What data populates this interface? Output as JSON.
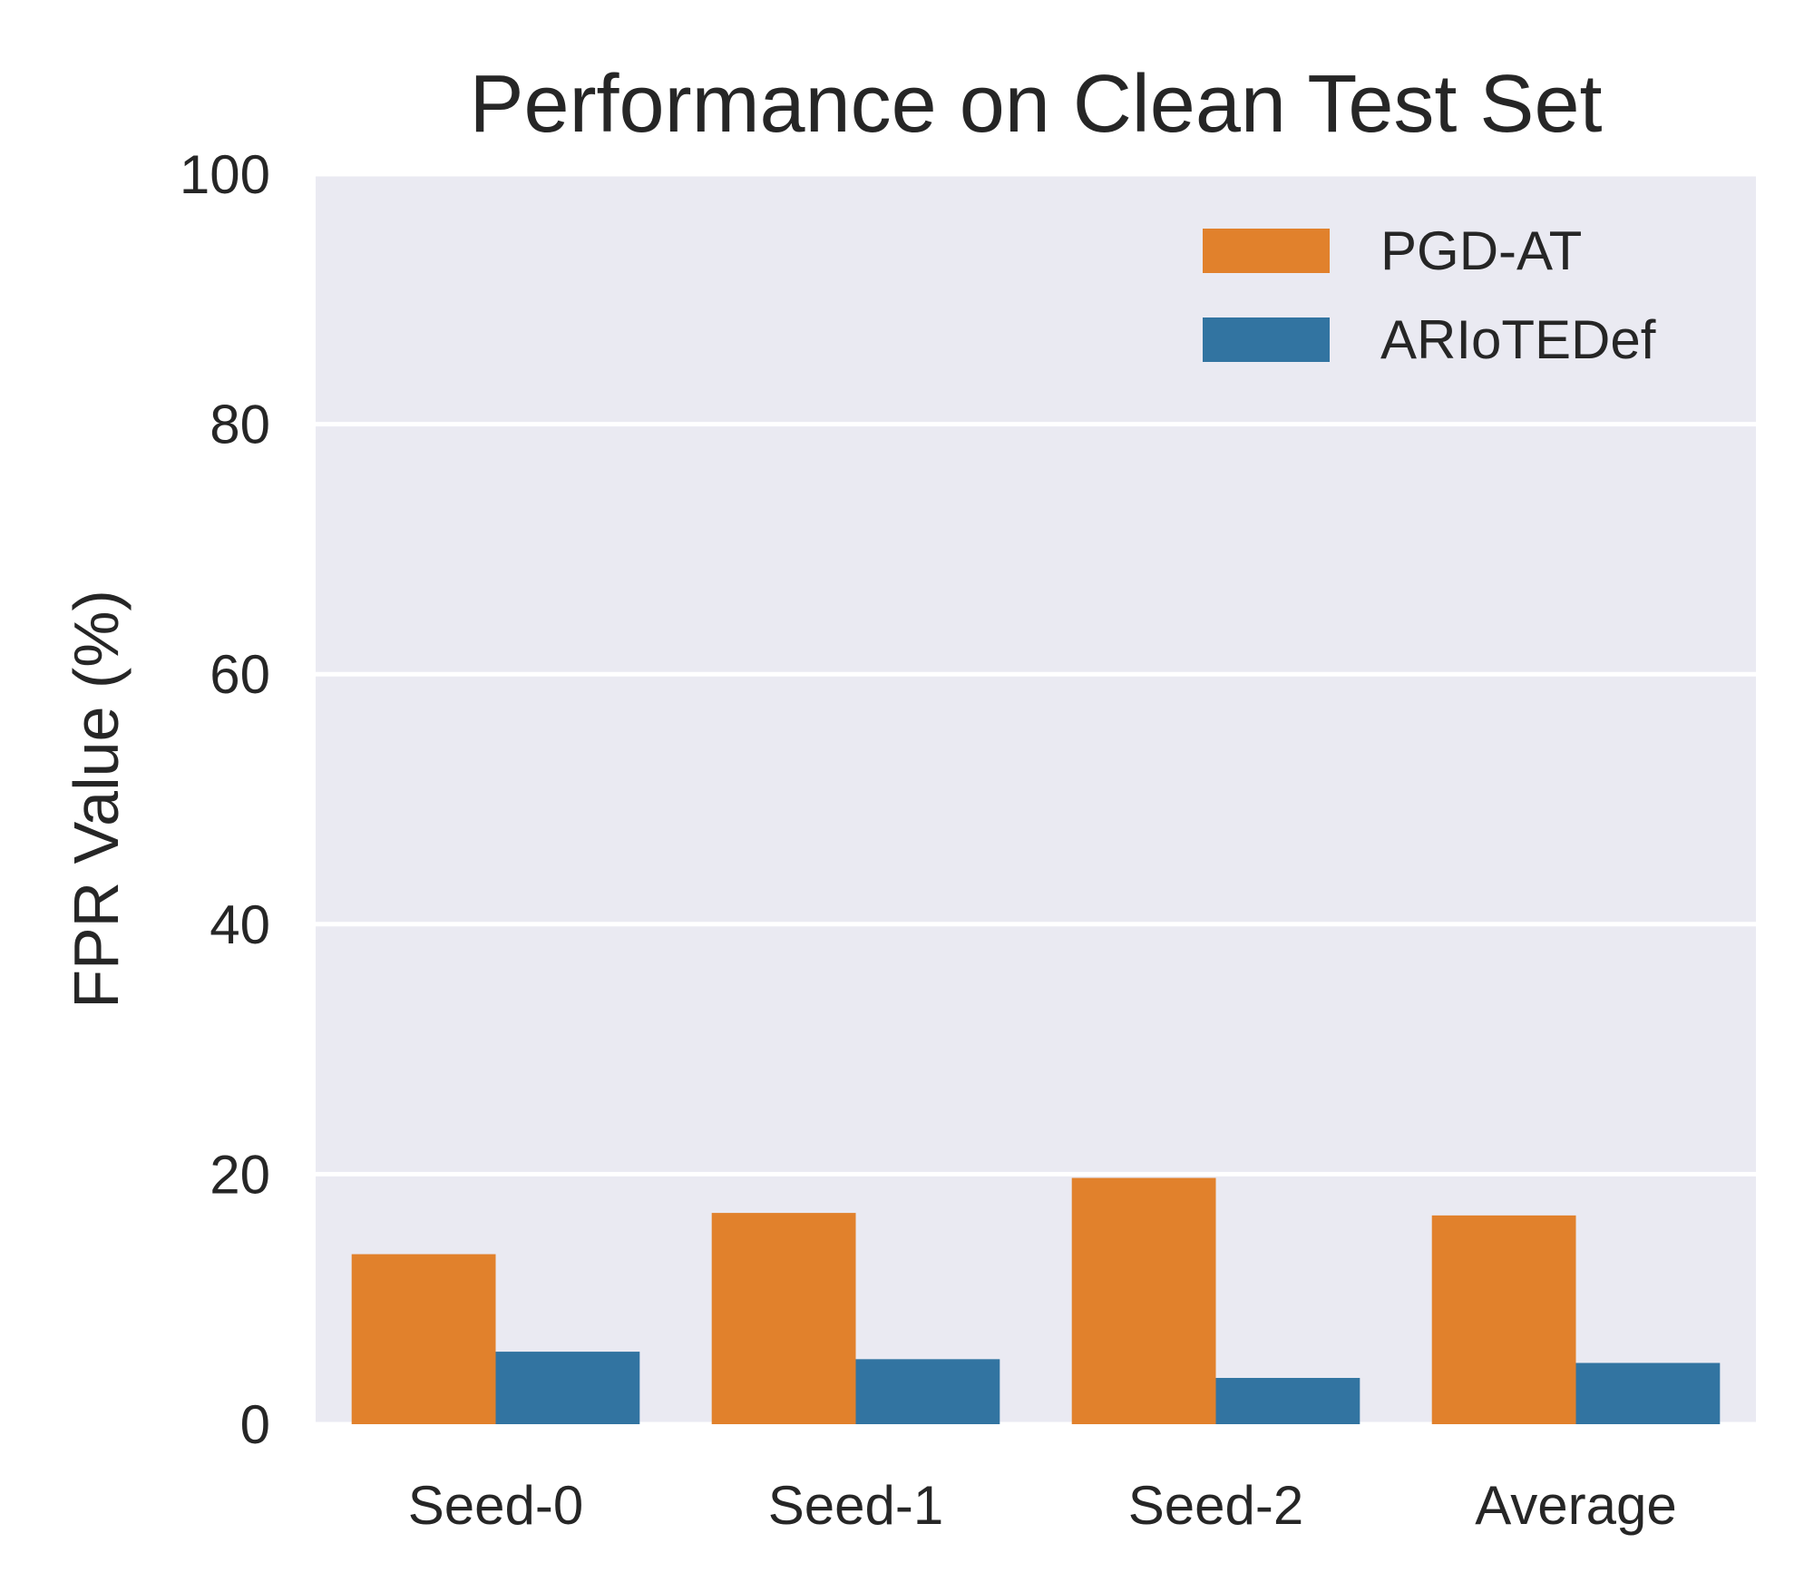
{
  "chart_data": {
    "type": "bar",
    "title": "Performance on Clean Test Set",
    "xlabel": "",
    "ylabel": "FPR Value (%)",
    "ylim": [
      0,
      100
    ],
    "yticks": [
      "0",
      "20",
      "40",
      "60",
      "80",
      "100"
    ],
    "categories": [
      "Seed-0",
      "Seed-1",
      "Seed-2",
      "Average"
    ],
    "series": [
      {
        "name": "PGD-AT",
        "color": "#e1812c",
        "values": [
          13.6,
          16.9,
          19.7,
          16.7
        ]
      },
      {
        "name": "ARIoTEDef",
        "color": "#3274a1",
        "values": [
          5.8,
          5.2,
          3.7,
          4.9
        ]
      }
    ],
    "grid": true,
    "background_color": "#eaeaf2",
    "legend_position": "top-right"
  }
}
